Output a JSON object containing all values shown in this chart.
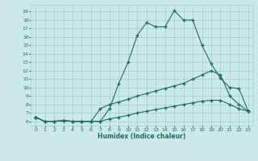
{
  "xlabel": "Humidex (Indice chaleur)",
  "bg_color": "#cce8e8",
  "line_color": "#1f6b6b",
  "grid_color": "#aacfcf",
  "ylim": [
    5.5,
    19.8
  ],
  "xlim": [
    -0.5,
    23.5
  ],
  "yticks": [
    6,
    7,
    8,
    9,
    10,
    11,
    12,
    13,
    14,
    15,
    16,
    17,
    18,
    19
  ],
  "xticks": [
    0,
    1,
    2,
    3,
    4,
    5,
    6,
    7,
    8,
    9,
    10,
    11,
    12,
    13,
    14,
    15,
    16,
    17,
    18,
    19,
    20,
    21,
    22,
    23
  ],
  "line1_x": [
    0,
    1,
    2,
    3,
    4,
    5,
    6,
    7,
    8,
    9,
    10,
    11,
    12,
    13,
    14,
    15,
    16,
    17,
    18,
    19,
    20,
    21,
    22,
    23
  ],
  "line1_y": [
    6.5,
    6.0,
    6.0,
    6.1,
    6.0,
    6.0,
    6.0,
    6.0,
    7.5,
    10.5,
    13.0,
    16.2,
    17.7,
    17.2,
    17.2,
    19.1,
    18.0,
    18.0,
    15.0,
    12.8,
    11.1,
    10.0,
    9.9,
    7.2
  ],
  "line2_x": [
    0,
    1,
    2,
    3,
    4,
    5,
    6,
    7,
    8,
    9,
    10,
    11,
    12,
    13,
    14,
    15,
    16,
    17,
    18,
    19,
    20,
    21,
    22,
    23
  ],
  "line2_y": [
    6.5,
    6.0,
    6.0,
    6.1,
    6.0,
    6.0,
    6.0,
    7.5,
    8.0,
    8.3,
    8.6,
    9.0,
    9.3,
    9.6,
    9.9,
    10.2,
    10.5,
    11.0,
    11.5,
    12.0,
    11.5,
    9.0,
    8.0,
    7.2
  ],
  "line3_x": [
    0,
    1,
    2,
    3,
    4,
    5,
    6,
    7,
    8,
    9,
    10,
    11,
    12,
    13,
    14,
    15,
    16,
    17,
    18,
    19,
    20,
    21,
    22,
    23
  ],
  "line3_y": [
    6.5,
    6.0,
    6.0,
    6.1,
    6.0,
    6.0,
    6.0,
    6.0,
    6.3,
    6.5,
    6.7,
    7.0,
    7.2,
    7.4,
    7.6,
    7.8,
    8.0,
    8.2,
    8.4,
    8.5,
    8.5,
    8.0,
    7.5,
    7.2
  ]
}
